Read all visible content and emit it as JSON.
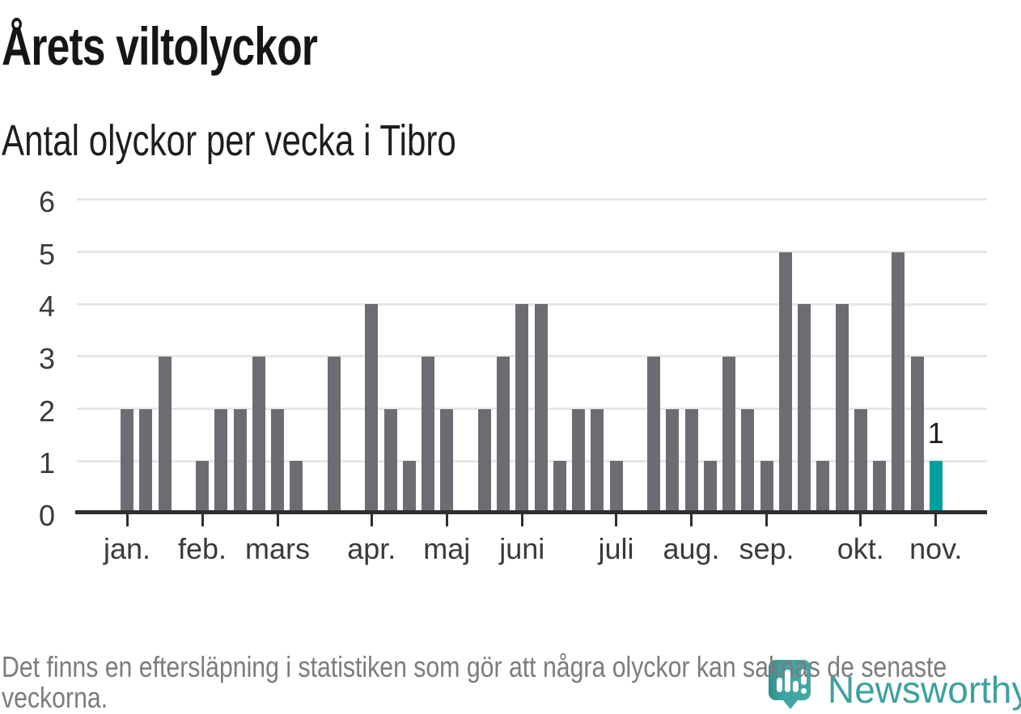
{
  "header": {
    "title": "Årets viltolyckor",
    "subtitle": "Antal olyckor per vecka i Tibro"
  },
  "footer": {
    "note": "Det finns en eftersläpning i statistiken som gör att några olyckor kan saknas de senaste veckorna.",
    "brand": "Newsworthy"
  },
  "chart_data": {
    "type": "bar",
    "title": "Årets viltolyckor",
    "subtitle": "Antal olyckor per vecka i Tibro",
    "ylabel": "Antal olyckor per vecka",
    "ylim": [
      0,
      6
    ],
    "yticks": [
      0,
      1,
      2,
      3,
      4,
      5,
      6
    ],
    "grid": true,
    "months": [
      {
        "label": "jan.",
        "weeks": [
          2,
          2,
          3,
          0
        ]
      },
      {
        "label": "feb.",
        "weeks": [
          1,
          2,
          2,
          3
        ]
      },
      {
        "label": "mars",
        "weeks": [
          2,
          1,
          0,
          3,
          0
        ]
      },
      {
        "label": "apr.",
        "weeks": [
          4,
          2,
          1,
          3
        ]
      },
      {
        "label": "maj",
        "weeks": [
          2,
          0,
          2,
          3
        ]
      },
      {
        "label": "juni",
        "weeks": [
          4,
          4,
          1,
          2,
          2
        ]
      },
      {
        "label": "juli",
        "weeks": [
          1,
          0,
          3,
          2
        ]
      },
      {
        "label": "aug.",
        "weeks": [
          2,
          1,
          3,
          2
        ]
      },
      {
        "label": "sep.",
        "weeks": [
          1,
          5,
          4,
          1,
          4
        ]
      },
      {
        "label": "okt.",
        "weeks": [
          2,
          1,
          5,
          3
        ]
      },
      {
        "label": "nov.",
        "weeks": [
          1
        ]
      }
    ],
    "highlight": {
      "position": "last-bar",
      "label": "1"
    },
    "colors": {
      "bar": "#6e6c73",
      "highlight": "#00a19c",
      "grid": "#e7e7e7",
      "axis": "#2f2f2f",
      "tick_text": "#3a3a3a",
      "brand_teal": "#3da19d"
    }
  }
}
